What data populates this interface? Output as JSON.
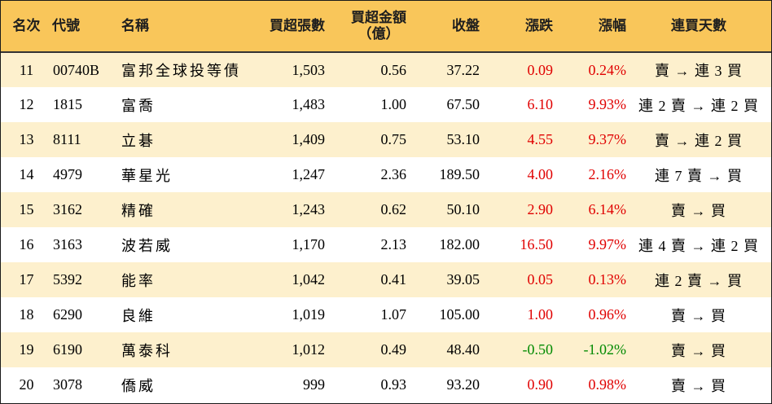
{
  "table": {
    "headers": {
      "rank": "名次",
      "code": "代號",
      "name": "名稱",
      "net_buy_lots": "買超張數",
      "net_buy_amount_line1": "買超金額",
      "net_buy_amount_line2": "（億）",
      "close": "收盤",
      "change": "漲跌",
      "change_pct": "漲幅",
      "streak": "連買天數"
    },
    "colors": {
      "header_bg": "#f9c65a",
      "stripe_bg": "#fdf0cd",
      "up": "#e00000",
      "down": "#008a00"
    },
    "rows": [
      {
        "rank": "11",
        "code": "00740B",
        "name": "富邦全球投等債",
        "net_buy_lots": "1,503",
        "net_buy_amount": "0.56",
        "close": "37.22",
        "change": "0.09",
        "change_pct": "0.24%",
        "streak": "賣 → 連 3 買",
        "direction": "up"
      },
      {
        "rank": "12",
        "code": "1815",
        "name": "富喬",
        "net_buy_lots": "1,483",
        "net_buy_amount": "1.00",
        "close": "67.50",
        "change": "6.10",
        "change_pct": "9.93%",
        "streak": "連 2 賣 → 連 2 買",
        "direction": "up"
      },
      {
        "rank": "13",
        "code": "8111",
        "name": "立碁",
        "net_buy_lots": "1,409",
        "net_buy_amount": "0.75",
        "close": "53.10",
        "change": "4.55",
        "change_pct": "9.37%",
        "streak": "賣 → 連 2 買",
        "direction": "up"
      },
      {
        "rank": "14",
        "code": "4979",
        "name": "華星光",
        "net_buy_lots": "1,247",
        "net_buy_amount": "2.36",
        "close": "189.50",
        "change": "4.00",
        "change_pct": "2.16%",
        "streak": "連 7 賣 → 買",
        "direction": "up"
      },
      {
        "rank": "15",
        "code": "3162",
        "name": "精確",
        "net_buy_lots": "1,243",
        "net_buy_amount": "0.62",
        "close": "50.10",
        "change": "2.90",
        "change_pct": "6.14%",
        "streak": "賣 → 買",
        "direction": "up"
      },
      {
        "rank": "16",
        "code": "3163",
        "name": "波若威",
        "net_buy_lots": "1,170",
        "net_buy_amount": "2.13",
        "close": "182.00",
        "change": "16.50",
        "change_pct": "9.97%",
        "streak": "連 4 賣 → 連 2 買",
        "direction": "up"
      },
      {
        "rank": "17",
        "code": "5392",
        "name": "能率",
        "net_buy_lots": "1,042",
        "net_buy_amount": "0.41",
        "close": "39.05",
        "change": "0.05",
        "change_pct": "0.13%",
        "streak": "連 2 賣 → 買",
        "direction": "up"
      },
      {
        "rank": "18",
        "code": "6290",
        "name": "良維",
        "net_buy_lots": "1,019",
        "net_buy_amount": "1.07",
        "close": "105.00",
        "change": "1.00",
        "change_pct": "0.96%",
        "streak": "賣 → 買",
        "direction": "up"
      },
      {
        "rank": "19",
        "code": "6190",
        "name": "萬泰科",
        "net_buy_lots": "1,012",
        "net_buy_amount": "0.49",
        "close": "48.40",
        "change": "-0.50",
        "change_pct": "-1.02%",
        "streak": "賣 → 買",
        "direction": "down"
      },
      {
        "rank": "20",
        "code": "3078",
        "name": "僑威",
        "net_buy_lots": "999",
        "net_buy_amount": "0.93",
        "close": "93.20",
        "change": "0.90",
        "change_pct": "0.98%",
        "streak": "賣 → 買",
        "direction": "up"
      }
    ]
  }
}
